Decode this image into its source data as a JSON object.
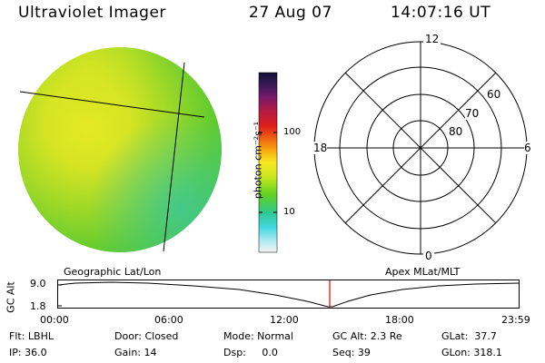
{
  "header": {
    "instrument": "Ultraviolet Imager",
    "date": "27 Aug 07",
    "time": "14:07:16 UT"
  },
  "colorbar": {
    "unit_label": "photon cm⁻²s⁻¹",
    "ticks": [
      {
        "value": 100,
        "label": "100"
      },
      {
        "value": 10,
        "label": "10"
      }
    ],
    "scale": "log",
    "colors": [
      "#101030",
      "#3a1a5a",
      "#7a1a6a",
      "#b81a40",
      "#e0201a",
      "#f07010",
      "#f8b010",
      "#f8e820",
      "#c8e820",
      "#60d020",
      "#30c890",
      "#40d8e0",
      "#a8e8f0",
      "#f4f4f4"
    ]
  },
  "polar_plot": {
    "mlt_labels": {
      "top": "12",
      "left": "18",
      "right": "6",
      "bottom": "0"
    },
    "mlat_labels": [
      "80",
      "70",
      "60"
    ]
  },
  "timeline": {
    "ylabel": "GC Alt",
    "y_ticks": [
      "9.0",
      "1.8"
    ],
    "left_title": "Geographic Lat/Lon",
    "right_title": "Apex MLat/MLT",
    "x_ticks": [
      "00:00",
      "06:00",
      "12:00",
      "18:00",
      "23:59"
    ],
    "current_time_marker": "14:07",
    "marker_color": "#e00000"
  },
  "status": {
    "flt": "Flt: LBHL",
    "door": "Door: Closed",
    "mode": "Mode: Normal",
    "gc_alt": "GC Alt: 2.3 Re",
    "glat": "GLat:  37.7",
    "ip": "IP: 36.0",
    "gain": "Gain: 14",
    "dsp": "Dsp:     0.0",
    "seq": "Seq: 39",
    "glon": "GLon: 318.1"
  }
}
